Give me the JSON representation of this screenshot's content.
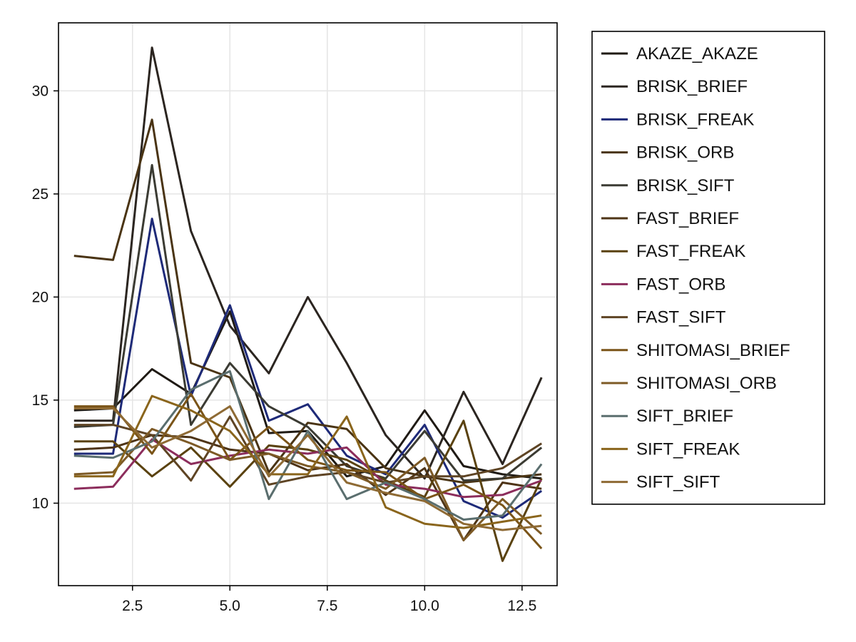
{
  "chart_data": {
    "type": "line",
    "title": "",
    "xlabel": "",
    "ylabel": "",
    "xlim": [
      0.6,
      13.4
    ],
    "ylim": [
      6.0,
      33.3
    ],
    "x_ticks": [
      2.5,
      5.0,
      7.5,
      10.0,
      12.5
    ],
    "x_tick_labels": [
      "2.5",
      "5.0",
      "7.5",
      "10.0",
      "12.5"
    ],
    "y_ticks": [
      10,
      15,
      20,
      25,
      30
    ],
    "y_tick_labels": [
      "10",
      "15",
      "20",
      "25",
      "30"
    ],
    "grid": true,
    "legend_position": "right",
    "x": [
      1,
      2,
      3,
      4,
      5,
      6,
      7,
      8,
      9,
      10,
      11,
      12,
      13
    ],
    "series": [
      {
        "name": "AKAZE_AKAZE",
        "color": "#1f1a14",
        "values": [
          14.5,
          14.6,
          16.5,
          15.3,
          19.3,
          13.4,
          13.5,
          11.3,
          11.8,
          14.5,
          11.8,
          11.4,
          11.2
        ]
      },
      {
        "name": "BRISK_BRIEF",
        "color": "#2b2520",
        "values": [
          14.0,
          14.0,
          32.1,
          23.2,
          18.6,
          16.3,
          20.0,
          16.8,
          13.3,
          11.2,
          15.4,
          11.9,
          16.1
        ]
      },
      {
        "name": "BRISK_FREAK",
        "color": "#1e2a78",
        "values": [
          12.4,
          12.4,
          23.8,
          15.2,
          19.6,
          14.0,
          14.8,
          12.3,
          11.4,
          13.8,
          10.1,
          9.3,
          10.6
        ]
      },
      {
        "name": "BRISK_ORB",
        "color": "#4a3414",
        "values": [
          22.0,
          21.8,
          28.6,
          16.8,
          16.1,
          11.5,
          13.9,
          13.6,
          11.7,
          11.3,
          11.0,
          11.2,
          11.4
        ]
      },
      {
        "name": "BRISK_SIFT",
        "color": "#3b3b33",
        "values": [
          13.7,
          13.8,
          26.4,
          13.8,
          16.8,
          14.7,
          13.7,
          11.8,
          11.2,
          13.5,
          11.1,
          11.2,
          12.7
        ]
      },
      {
        "name": "FAST_BRIEF",
        "color": "#4e3416",
        "values": [
          12.6,
          12.7,
          13.3,
          13.2,
          12.6,
          12.4,
          11.6,
          11.9,
          10.4,
          11.7,
          8.2,
          11.0,
          10.7
        ]
      },
      {
        "name": "FAST_FREAK",
        "color": "#5a4210",
        "values": [
          13.0,
          13.0,
          11.3,
          12.7,
          10.8,
          12.8,
          12.6,
          12.1,
          11.1,
          10.3,
          14.0,
          7.2,
          11.2
        ]
      },
      {
        "name": "FAST_ORB",
        "color": "#8c2d5c",
        "values": [
          10.7,
          10.8,
          13.1,
          11.9,
          12.3,
          12.6,
          12.4,
          12.7,
          10.9,
          10.7,
          10.3,
          10.4,
          11.1
        ]
      },
      {
        "name": "FAST_SIFT",
        "color": "#5e4424",
        "values": [
          13.8,
          13.8,
          13.3,
          11.1,
          14.2,
          10.9,
          11.3,
          11.5,
          11.0,
          11.3,
          11.3,
          11.7,
          12.9
        ]
      },
      {
        "name": "SHITOMASI_BRIEF",
        "color": "#7a5418",
        "values": [
          14.7,
          14.7,
          12.4,
          15.3,
          12.1,
          13.7,
          12.1,
          11.6,
          11.5,
          10.2,
          10.9,
          9.9,
          7.8
        ]
      },
      {
        "name": "SHITOMASI_ORB",
        "color": "#7d5a26",
        "values": [
          11.4,
          11.5,
          13.6,
          12.9,
          12.1,
          12.4,
          11.8,
          11.5,
          10.7,
          12.2,
          8.2,
          10.2,
          8.5
        ]
      },
      {
        "name": "SIFT_BRIEF",
        "color": "#5a6e6e",
        "values": [
          12.3,
          12.2,
          13.0,
          15.5,
          16.4,
          10.2,
          13.5,
          10.2,
          11.0,
          10.2,
          9.2,
          9.4,
          11.9
        ]
      },
      {
        "name": "SIFT_FREAK",
        "color": "#8a651c",
        "values": [
          11.3,
          11.3,
          15.2,
          14.5,
          13.5,
          11.4,
          11.4,
          14.2,
          9.8,
          9.0,
          8.8,
          9.1,
          9.4
        ]
      },
      {
        "name": "SIFT_SIFT",
        "color": "#8e6a34",
        "values": [
          14.6,
          14.6,
          12.7,
          13.5,
          14.7,
          11.3,
          13.3,
          11.0,
          10.5,
          10.1,
          9.0,
          8.7,
          8.9
        ]
      }
    ]
  }
}
